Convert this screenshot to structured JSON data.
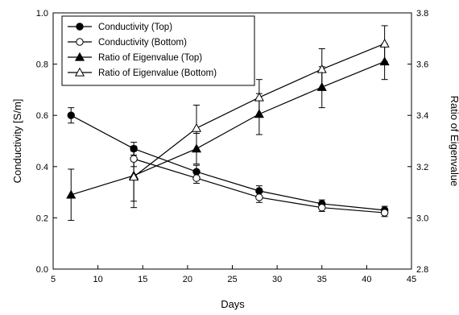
{
  "chart_data": {
    "type": "line",
    "xlabel": "Days",
    "ylabel": "Conductivity [S/m]",
    "y2label": "Ratio of Eigenvalue",
    "xlim": [
      5,
      45
    ],
    "ylim": [
      0.0,
      1.0
    ],
    "y2lim": [
      2.8,
      3.8
    ],
    "xticks": [
      "5",
      "10",
      "15",
      "20",
      "25",
      "30",
      "35",
      "40",
      "45"
    ],
    "yticks": [
      "0.0",
      "0.2",
      "0.4",
      "0.6",
      "0.8",
      "1.0"
    ],
    "y2ticks": [
      "2.8",
      "3.0",
      "3.2",
      "3.4",
      "3.6",
      "3.8"
    ],
    "legend_position": "top-left",
    "series": [
      {
        "name": "Conductivity (Top)",
        "axis": "left",
        "marker": "circle-filled",
        "x": [
          7,
          14,
          21,
          28,
          35,
          42
        ],
        "y": [
          0.6,
          0.47,
          0.38,
          0.305,
          0.255,
          0.23
        ],
        "err": [
          0.03,
          0.025,
          0.025,
          0.02,
          0.015,
          0.015
        ]
      },
      {
        "name": "Conductivity (Bottom)",
        "axis": "left",
        "marker": "circle-open",
        "x": [
          14,
          21,
          28,
          35,
          42
        ],
        "y": [
          0.43,
          0.355,
          0.28,
          0.24,
          0.22
        ],
        "err": [
          0.03,
          0.02,
          0.02,
          0.015,
          0.015
        ]
      },
      {
        "name": "Ratio of Eigenvalue (Top)",
        "axis": "right",
        "marker": "triangle-filled",
        "x": [
          7,
          14,
          21,
          28,
          35,
          42
        ],
        "y": [
          3.09,
          3.165,
          3.27,
          3.405,
          3.51,
          3.61
        ],
        "err": [
          0.1,
          0.1,
          0.06,
          0.08,
          0.08,
          0.07
        ]
      },
      {
        "name": "Ratio of Eigenvalue (Bottom)",
        "axis": "right",
        "marker": "triangle-open",
        "x": [
          14,
          21,
          28,
          35,
          42
        ],
        "y": [
          3.16,
          3.35,
          3.47,
          3.58,
          3.68
        ],
        "err": [
          0.12,
          0.09,
          0.07,
          0.08,
          0.07
        ]
      }
    ]
  }
}
